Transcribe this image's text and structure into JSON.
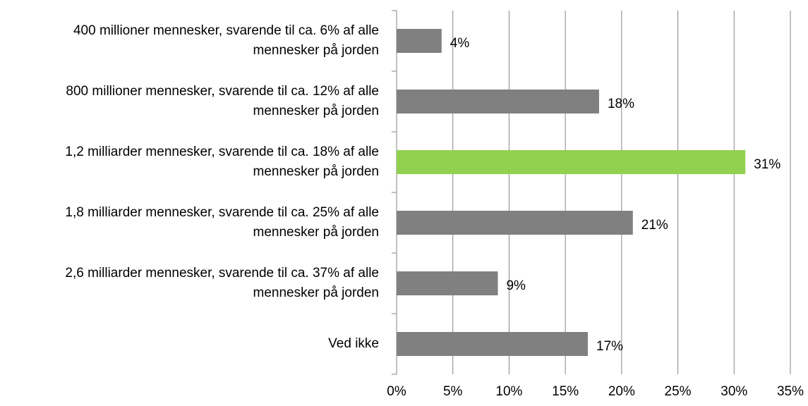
{
  "chart_data": {
    "type": "barh",
    "categories": [
      "400 millioner mennesker, svarende til ca. 6% af alle mennesker på jorden",
      "800 millioner mennesker, svarende til ca. 12% af alle mennesker på jorden",
      "1,2 milliarder mennesker, svarende til ca. 18% af alle mennesker på jorden",
      "1,8 milliarder mennesker, svarende til ca. 25% af alle mennesker på jorden",
      "2,6 milliarder mennesker, svarende til ca. 37% af alle mennesker på jorden",
      "Ved ikke"
    ],
    "values": [
      4,
      18,
      31,
      21,
      9,
      17
    ],
    "value_labels": [
      "4%",
      "18%",
      "31%",
      "21%",
      "9%",
      "17%"
    ],
    "colors": [
      "#808080",
      "#808080",
      "#92d050",
      "#808080",
      "#808080",
      "#808080"
    ],
    "xlim": [
      0,
      35
    ],
    "xticks": [
      {
        "value": 0,
        "label": "0%"
      },
      {
        "value": 5,
        "label": "5%"
      },
      {
        "value": 10,
        "label": "10%"
      },
      {
        "value": 15,
        "label": "15%"
      },
      {
        "value": 20,
        "label": "20%"
      },
      {
        "value": 25,
        "label": "25%"
      },
      {
        "value": 30,
        "label": "30%"
      },
      {
        "value": 35,
        "label": "35%"
      }
    ],
    "grid": true
  }
}
